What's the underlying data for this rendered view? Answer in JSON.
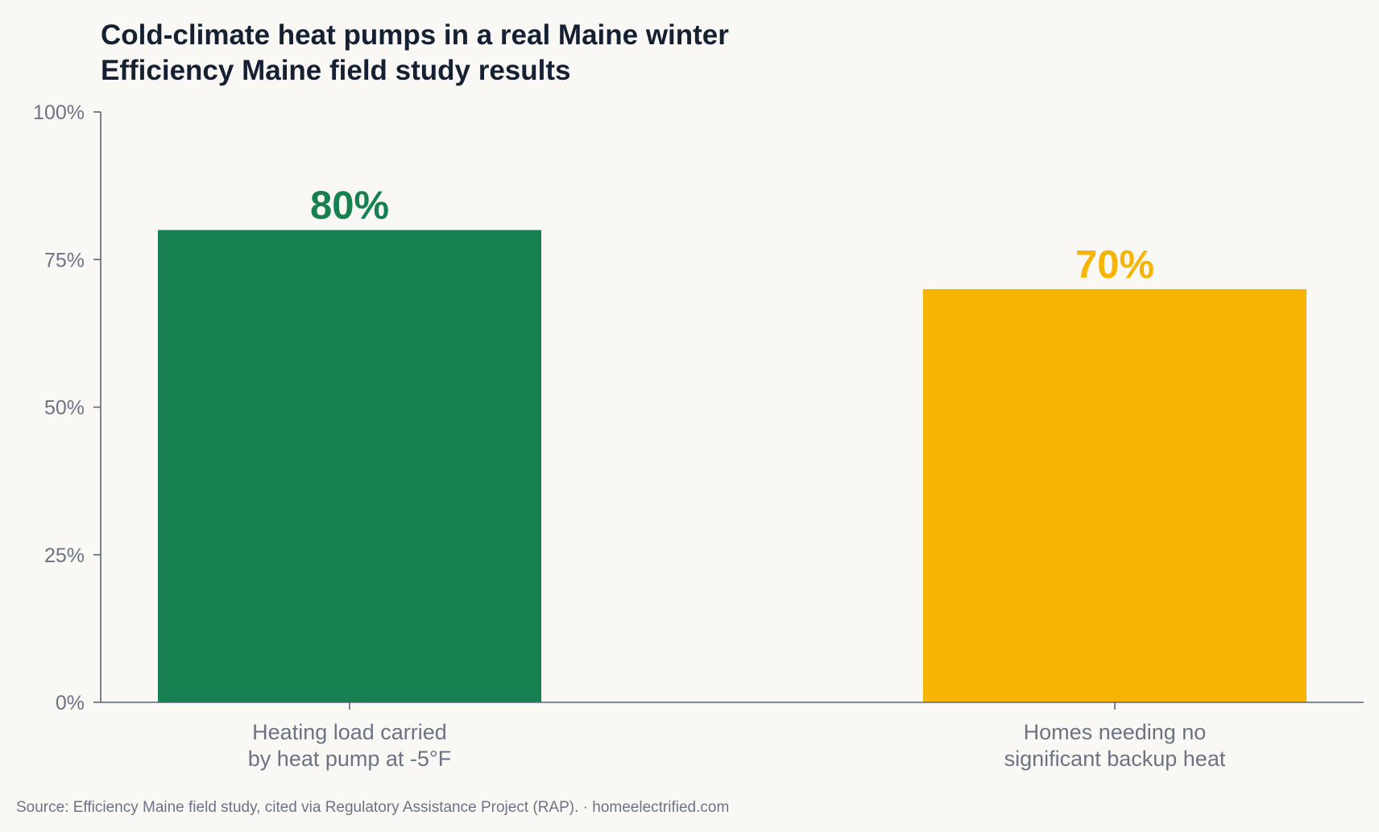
{
  "chart_data": {
    "type": "bar",
    "title": "Cold-climate heat pumps in a real Maine winter",
    "subtitle": "Efficiency Maine field study results",
    "categories": [
      [
        "Heating load carried",
        "by heat pump at -5°F"
      ],
      [
        "Homes needing no",
        "significant backup heat"
      ]
    ],
    "values": [
      80,
      70
    ],
    "value_labels": [
      "80%",
      "70%"
    ],
    "colors": [
      "#178050",
      "#f6b505"
    ],
    "ylim": [
      0,
      100
    ],
    "yticks": [
      0,
      25,
      50,
      75,
      100
    ],
    "ytick_labels": [
      "0%",
      "25%",
      "50%",
      "75%",
      "100%"
    ],
    "xlabel": "",
    "ylabel": "",
    "grid": false,
    "legend": "none"
  },
  "footer": {
    "source": "Source: Efficiency Maine field study, cited via Regulatory Assistance Project (RAP).  ·  homeelectrified.com"
  },
  "colors": {
    "background": "#f9f8f4",
    "axis": "#5c6478",
    "title": "#152033",
    "muted_text": "#6b7385"
  }
}
